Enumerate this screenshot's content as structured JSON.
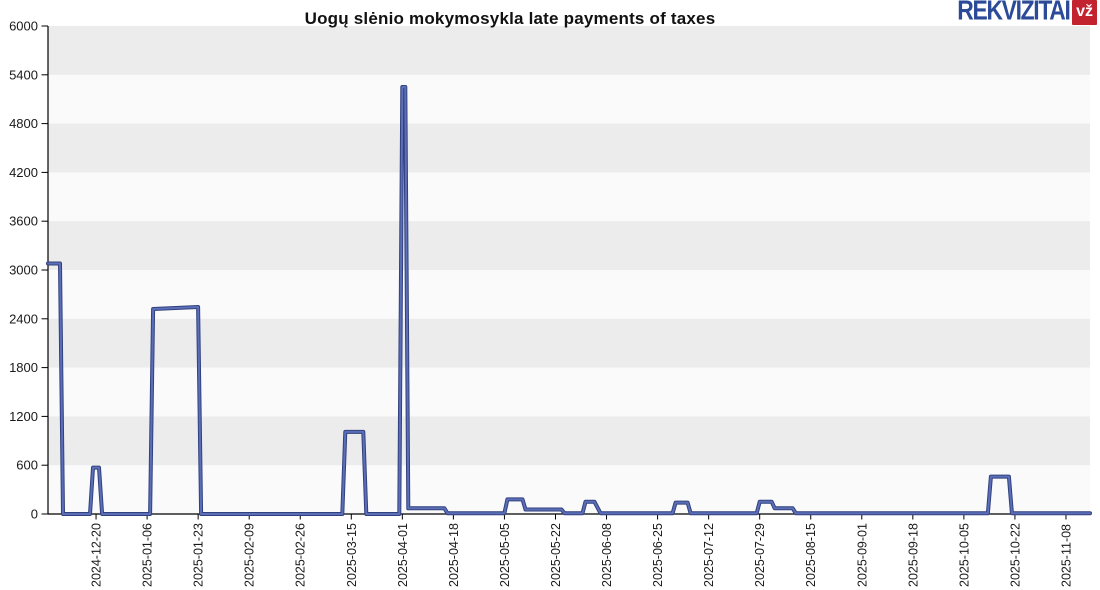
{
  "header": {
    "logo": {
      "text": "REKVIZITAI",
      "badge": "vž",
      "brand_blue": "#2b4a97",
      "brand_red": "#c2232e"
    }
  },
  "chart_data": {
    "type": "line",
    "title": "Uogų slėnio mokymosykla late payments of taxes",
    "xlabel": "",
    "ylabel": "",
    "ylim": [
      0,
      6000
    ],
    "y_tick_step": 600,
    "grid": "alternating-horizontal-bands",
    "legend": "none",
    "plot_bg": "#fafafa",
    "band_fill": "#ececec",
    "axis_color": "#000000",
    "tick_label_color": "#1a1a1a",
    "x_domain": [
      "2024-12-04",
      "2025-11-16"
    ],
    "x_tick_labels": [
      "2024-12-20",
      "2025-01-06",
      "2025-01-23",
      "2025-02-09",
      "2025-02-26",
      "2025-03-15",
      "2025-04-01",
      "2025-04-18",
      "2025-05-05",
      "2025-05-22",
      "2025-06-08",
      "2025-06-25",
      "2025-07-12",
      "2025-07-29",
      "2025-08-15",
      "2025-09-01",
      "2025-09-18",
      "2025-10-05",
      "2025-10-22",
      "2025-11-08"
    ],
    "series": [
      {
        "name": "Late payments of taxes",
        "color_outer": "#32407d",
        "color_inner": "#5b6fb8",
        "points": [
          [
            "2024-12-04",
            3080
          ],
          [
            "2024-12-08",
            3080
          ],
          [
            "2024-12-09",
            0
          ],
          [
            "2024-12-18",
            0
          ],
          [
            "2024-12-19",
            570
          ],
          [
            "2024-12-21",
            570
          ],
          [
            "2024-12-22",
            0
          ],
          [
            "2025-01-07",
            0
          ],
          [
            "2025-01-08",
            2520
          ],
          [
            "2025-01-23",
            2545
          ],
          [
            "2025-01-24",
            0
          ],
          [
            "2025-03-12",
            0
          ],
          [
            "2025-03-13",
            1010
          ],
          [
            "2025-03-19",
            1010
          ],
          [
            "2025-03-20",
            0
          ],
          [
            "2025-03-31",
            0
          ],
          [
            "2025-04-01",
            5250
          ],
          [
            "2025-04-02",
            5250
          ],
          [
            "2025-04-03",
            70
          ],
          [
            "2025-04-15",
            70
          ],
          [
            "2025-04-16",
            10
          ],
          [
            "2025-05-05",
            10
          ],
          [
            "2025-05-06",
            180
          ],
          [
            "2025-05-11",
            180
          ],
          [
            "2025-05-12",
            55
          ],
          [
            "2025-05-24",
            55
          ],
          [
            "2025-05-25",
            10
          ],
          [
            "2025-05-31",
            10
          ],
          [
            "2025-06-01",
            150
          ],
          [
            "2025-06-04",
            150
          ],
          [
            "2025-06-06",
            10
          ],
          [
            "2025-06-30",
            10
          ],
          [
            "2025-07-01",
            140
          ],
          [
            "2025-07-05",
            140
          ],
          [
            "2025-07-06",
            10
          ],
          [
            "2025-07-28",
            10
          ],
          [
            "2025-07-29",
            150
          ],
          [
            "2025-08-02",
            150
          ],
          [
            "2025-08-03",
            70
          ],
          [
            "2025-08-09",
            70
          ],
          [
            "2025-08-10",
            10
          ],
          [
            "2025-10-13",
            10
          ],
          [
            "2025-10-14",
            460
          ],
          [
            "2025-10-20",
            460
          ],
          [
            "2025-10-21",
            10
          ],
          [
            "2025-11-16",
            10
          ]
        ]
      }
    ]
  }
}
